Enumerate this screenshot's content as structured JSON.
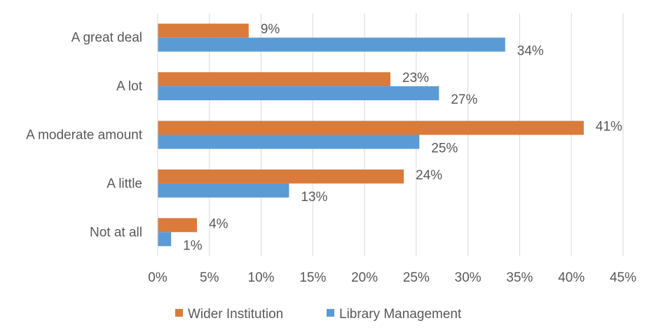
{
  "chart_data": {
    "type": "bar",
    "orientation": "horizontal",
    "categories": [
      "A great deal",
      "A lot",
      "A moderate amount",
      "A little",
      "Not at all"
    ],
    "series": [
      {
        "name": "Wider Institution",
        "color": "#DA7B3C",
        "values": [
          8.8,
          22.5,
          41.2,
          23.8,
          3.8
        ],
        "labels": [
          "9%",
          "23%",
          "41%",
          "24%",
          "4%"
        ]
      },
      {
        "name": "Library Management",
        "color": "#5B9BD5",
        "values": [
          33.6,
          27.2,
          25.3,
          12.7,
          1.3
        ],
        "labels": [
          "34%",
          "27%",
          "25%",
          "13%",
          "1%"
        ]
      }
    ],
    "xlim": [
      0,
      45
    ],
    "x_ticks": [
      "0%",
      "5%",
      "10%",
      "15%",
      "20%",
      "25%",
      "30%",
      "35%",
      "40%",
      "45%"
    ],
    "grid": "vertical",
    "legend": "bottom"
  }
}
